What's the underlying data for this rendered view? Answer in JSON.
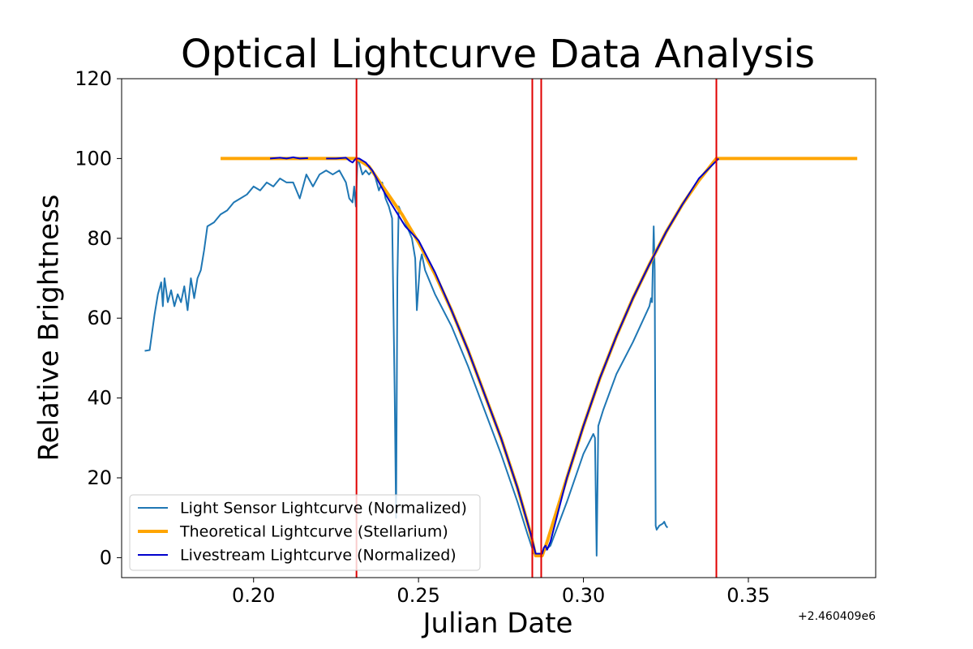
{
  "chart_data": {
    "type": "line",
    "title": "Optical Lightcurve Data Analysis",
    "xlabel": "Julian Date",
    "ylabel": "Relative Brightness",
    "x_offset_text": "+2.460409e6",
    "xlim": [
      0.16,
      0.3886
    ],
    "ylim": [
      -5,
      120
    ],
    "xticks": [
      {
        "value": 0.2,
        "label": "0.20"
      },
      {
        "value": 0.25,
        "label": "0.25"
      },
      {
        "value": 0.3,
        "label": "0.30"
      },
      {
        "value": 0.35,
        "label": "0.35"
      }
    ],
    "yticks": [
      0,
      20,
      40,
      60,
      80,
      100,
      120
    ],
    "legend": "lower left",
    "series": [
      {
        "name": "Light Sensor Lightcurve (Normalized)",
        "color": "#1f77b4",
        "linewidth": 2,
        "x": [
          0.167,
          0.1685,
          0.169,
          0.17,
          0.171,
          0.172,
          0.1725,
          0.173,
          0.174,
          0.175,
          0.176,
          0.177,
          0.178,
          0.179,
          0.18,
          0.181,
          0.182,
          0.183,
          0.184,
          0.185,
          0.186,
          0.188,
          0.19,
          0.192,
          0.194,
          0.196,
          0.198,
          0.2,
          0.202,
          0.204,
          0.206,
          0.208,
          0.21,
          0.212,
          0.214,
          0.216,
          0.218,
          0.22,
          0.222,
          0.224,
          0.226,
          0.228,
          0.229,
          0.23,
          0.2305,
          0.231,
          0.2315,
          0.232,
          0.233,
          0.234,
          0.235,
          0.236,
          0.237,
          0.238,
          0.239,
          0.24,
          0.241,
          0.242,
          0.2428,
          0.2432,
          0.2436,
          0.244,
          0.246,
          0.248,
          0.249,
          0.2495,
          0.2505,
          0.251,
          0.252,
          0.255,
          0.26,
          0.265,
          0.27,
          0.275,
          0.28,
          0.283,
          0.285,
          0.2865,
          0.29,
          0.295,
          0.3,
          0.303,
          0.3035,
          0.304,
          0.3045,
          0.306,
          0.31,
          0.315,
          0.32,
          0.3205,
          0.3208,
          0.3213,
          0.3216,
          0.3219,
          0.3222,
          0.323,
          0.324,
          0.3245,
          0.325,
          0.3255
        ],
        "values": [
          51.8,
          52,
          55,
          61,
          66,
          69,
          63,
          70,
          64,
          67,
          63,
          66,
          64,
          68,
          62,
          70,
          65,
          70,
          72,
          77,
          83,
          84,
          86,
          87,
          89,
          90,
          91,
          93,
          92,
          94,
          93,
          95,
          94,
          94,
          90,
          96,
          93,
          96,
          97,
          96,
          97,
          94,
          90,
          89,
          93,
          88,
          100,
          99,
          96,
          97,
          96,
          97,
          95,
          92,
          94,
          90,
          88,
          85,
          40,
          10,
          70,
          88,
          84,
          80,
          75,
          62,
          74,
          76,
          72,
          66,
          58,
          48,
          37,
          26,
          14,
          6,
          1,
          0.5,
          3,
          14,
          26,
          31,
          30,
          0.5,
          33,
          37,
          46,
          54,
          63,
          65,
          64,
          83,
          72,
          8,
          7,
          8,
          8.5,
          9,
          8,
          7.5
        ]
      },
      {
        "name": "Theoretical Lightcurve (Stellarium)",
        "color": "#ffa500",
        "linewidth": 4,
        "x": [
          0.19,
          0.2312,
          0.235,
          0.24,
          0.245,
          0.25,
          0.255,
          0.26,
          0.265,
          0.27,
          0.275,
          0.28,
          0.284,
          0.2855,
          0.2875,
          0.289,
          0.295,
          0.3,
          0.305,
          0.31,
          0.315,
          0.32,
          0.325,
          0.33,
          0.335,
          0.3403,
          0.383
        ],
        "values": [
          100,
          100,
          98,
          92,
          86,
          79,
          71,
          62,
          52,
          41,
          30,
          17.5,
          6,
          0.5,
          0.5,
          4,
          20,
          33,
          45,
          55.5,
          65,
          73.5,
          81.5,
          88.5,
          94.5,
          100,
          100
        ]
      },
      {
        "name": "Livestream Lightcurve (Normalized)",
        "color": "#0000cd",
        "linewidth": 2,
        "x": [
          0.205,
          0.208,
          0.21,
          0.212,
          0.214,
          0.2165,
          0.219,
          0.222,
          0.225,
          0.228,
          0.229,
          0.23,
          0.231,
          0.232,
          0.234,
          0.236,
          0.238,
          0.24,
          0.243,
          0.246,
          0.25,
          0.255,
          0.26,
          0.265,
          0.27,
          0.275,
          0.28,
          0.284,
          0.2855,
          0.2875,
          0.288,
          0.2885,
          0.289,
          0.29,
          0.295,
          0.3,
          0.305,
          0.31,
          0.315,
          0.32,
          0.325,
          0.33,
          0.335,
          0.338,
          0.341
        ],
        "values": [
          100,
          100.2,
          100,
          100.3,
          100,
          100.1,
          null,
          100,
          100,
          100.2,
          99.5,
          99,
          100,
          100,
          99,
          97,
          94,
          91,
          87,
          83,
          79.5,
          71.5,
          62,
          52,
          41,
          30,
          17.5,
          6,
          1,
          1,
          2.5,
          3,
          2,
          4,
          20,
          33,
          45,
          55.5,
          65,
          73.5,
          81.5,
          88.5,
          95,
          97.5,
          100
        ]
      }
    ],
    "vlines": {
      "color": "#e00000",
      "x": [
        0.2312,
        0.2845,
        0.2872,
        0.3403
      ]
    }
  }
}
